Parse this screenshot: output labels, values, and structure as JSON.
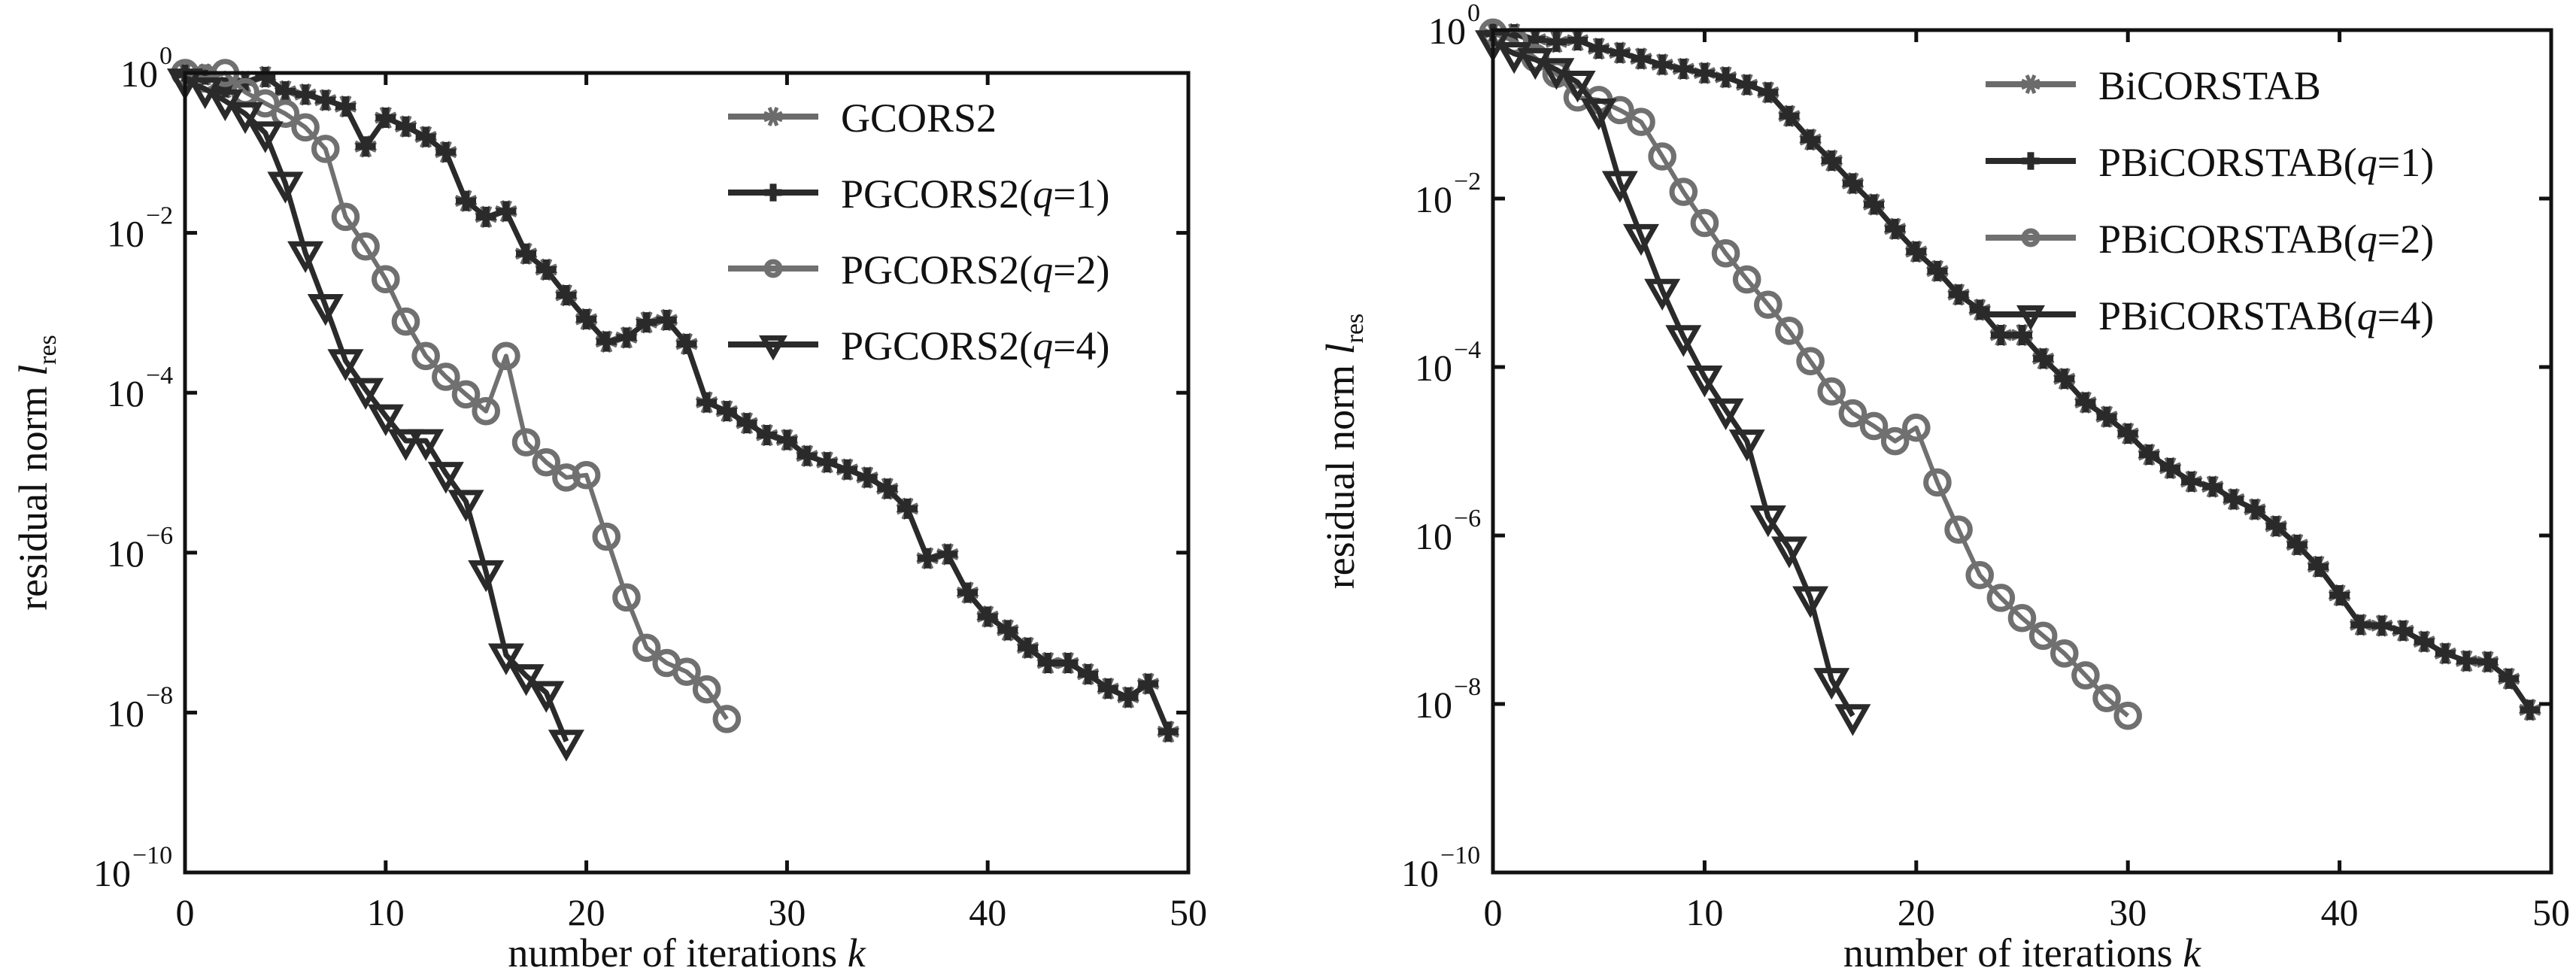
{
  "chart_data": [
    {
      "type": "line",
      "title": "",
      "xlabel": "number of iterations k",
      "ylabel": "residual norm l_res",
      "ylabel_main": "residual norm ",
      "ylabel_italic": "l",
      "ylabel_sub": "res",
      "xlabel_main": "number of iterations ",
      "xlabel_italic": "k",
      "xscale": "linear",
      "yscale": "log",
      "xlim": [
        0,
        50
      ],
      "ylim": [
        1e-10,
        1
      ],
      "xticks": [
        0,
        10,
        20,
        30,
        40,
        50
      ],
      "yticks_exponents": [
        0,
        -2,
        -4,
        -6,
        -8,
        -10
      ],
      "ytick_base": "10",
      "grid": false,
      "legend_position": "top-right",
      "series": [
        {
          "name": "GCORS2",
          "name_parts": {
            "pre": "GCORS2",
            "italic": "",
            "post": ""
          },
          "marker": "asterisk",
          "color": "#6b6b6b",
          "x": [
            0,
            1,
            2,
            3,
            4,
            5,
            6,
            7,
            8,
            9,
            10,
            11,
            12,
            13,
            14,
            15,
            16,
            17,
            18,
            19,
            20,
            21,
            22,
            23,
            24,
            25,
            26,
            27,
            28,
            29,
            30,
            31,
            32,
            33,
            34,
            35,
            36,
            37,
            38,
            39,
            40,
            41,
            42,
            43,
            44,
            45,
            46,
            47,
            48,
            49
          ],
          "log10_y": [
            -0.02,
            -0.02,
            -0.18,
            -0.11,
            -0.05,
            -0.23,
            -0.27,
            -0.34,
            -0.42,
            -0.92,
            -0.56,
            -0.67,
            -0.8,
            -0.99,
            -1.6,
            -1.8,
            -1.73,
            -2.26,
            -2.46,
            -2.78,
            -3.08,
            -3.36,
            -3.31,
            -3.12,
            -3.09,
            -3.39,
            -4.12,
            -4.23,
            -4.38,
            -4.53,
            -4.59,
            -4.79,
            -4.87,
            -4.96,
            -5.06,
            -5.2,
            -5.45,
            -6.07,
            -6.02,
            -6.5,
            -6.8,
            -6.97,
            -7.19,
            -7.38,
            -7.38,
            -7.52,
            -7.7,
            -7.81,
            -7.64,
            -8.24
          ]
        },
        {
          "name": "PGCORS2(q=1)",
          "name_parts": {
            "pre": "PGCORS2(",
            "italic": "q",
            "post": "=1)"
          },
          "marker": "plus",
          "color": "#2a2a2a",
          "x": [
            0,
            1,
            2,
            3,
            4,
            5,
            6,
            7,
            8,
            9,
            10,
            11,
            12,
            13,
            14,
            15,
            16,
            17,
            18,
            19,
            20,
            21,
            22,
            23,
            24,
            25,
            26,
            27,
            28,
            29,
            30,
            31,
            32,
            33,
            34,
            35,
            36,
            37,
            38,
            39,
            40,
            41,
            42,
            43,
            44,
            45,
            46,
            47,
            48,
            49
          ],
          "log10_y": [
            -0.02,
            -0.02,
            -0.18,
            -0.11,
            -0.05,
            -0.23,
            -0.27,
            -0.34,
            -0.42,
            -0.92,
            -0.56,
            -0.67,
            -0.8,
            -0.99,
            -1.6,
            -1.8,
            -1.73,
            -2.26,
            -2.46,
            -2.78,
            -3.08,
            -3.36,
            -3.31,
            -3.12,
            -3.09,
            -3.39,
            -4.12,
            -4.23,
            -4.38,
            -4.53,
            -4.59,
            -4.79,
            -4.87,
            -4.96,
            -5.06,
            -5.2,
            -5.45,
            -6.07,
            -6.02,
            -6.5,
            -6.8,
            -6.97,
            -7.19,
            -7.38,
            -7.38,
            -7.52,
            -7.7,
            -7.81,
            -7.64,
            -8.24
          ]
        },
        {
          "name": "PGCORS2(q=2)",
          "name_parts": {
            "pre": "PGCORS2(",
            "italic": "q",
            "post": "=2)"
          },
          "marker": "circle",
          "color": "#707070",
          "x": [
            0,
            1,
            2,
            3,
            4,
            5,
            6,
            7,
            8,
            9,
            10,
            11,
            12,
            13,
            14,
            15,
            16,
            17,
            18,
            19,
            20,
            21,
            22,
            23,
            24,
            25,
            26,
            27
          ],
          "log10_y": [
            0.0,
            -0.07,
            0.0,
            -0.24,
            -0.38,
            -0.51,
            -0.68,
            -0.95,
            -1.8,
            -2.17,
            -2.58,
            -3.11,
            -3.54,
            -3.8,
            -4.02,
            -4.23,
            -3.54,
            -4.62,
            -4.87,
            -5.06,
            -5.03,
            -5.8,
            -6.56,
            -7.19,
            -7.38,
            -7.49,
            -7.71,
            -8.08
          ]
        },
        {
          "name": "PGCORS2(q=4)",
          "name_parts": {
            "pre": "PGCORS2(",
            "italic": "q",
            "post": "=4)"
          },
          "marker": "triangle-down",
          "color": "#2a2a2a",
          "x": [
            0,
            1,
            2,
            3,
            4,
            5,
            6,
            7,
            8,
            9,
            10,
            11,
            12,
            13,
            14,
            15,
            16,
            17,
            18,
            19
          ],
          "log10_y": [
            -0.09,
            -0.2,
            -0.35,
            -0.51,
            -0.75,
            -1.38,
            -2.25,
            -2.91,
            -3.6,
            -3.96,
            -4.29,
            -4.6,
            -4.6,
            -5.01,
            -5.36,
            -6.24,
            -7.28,
            -7.54,
            -7.75,
            -8.36
          ]
        }
      ]
    },
    {
      "type": "line",
      "title": "",
      "xlabel": "number of iterations k",
      "ylabel": "residual norm l_res",
      "ylabel_main": "residual norm ",
      "ylabel_italic": "l",
      "ylabel_sub": "res",
      "xlabel_main": "number of iterations ",
      "xlabel_italic": "k",
      "xscale": "linear",
      "yscale": "log",
      "xlim": [
        0,
        50
      ],
      "ylim": [
        1e-10,
        1
      ],
      "xticks": [
        0,
        10,
        20,
        30,
        40,
        50
      ],
      "yticks_exponents": [
        0,
        -2,
        -4,
        -6,
        -8,
        -10
      ],
      "ytick_base": "10",
      "grid": false,
      "legend_position": "top-right",
      "series": [
        {
          "name": "BiCORSTAB",
          "name_parts": {
            "pre": "BiCORSTAB",
            "italic": "",
            "post": ""
          },
          "marker": "asterisk",
          "color": "#6b6b6b",
          "x": [
            0,
            1,
            2,
            3,
            4,
            5,
            6,
            7,
            8,
            9,
            10,
            11,
            12,
            13,
            14,
            15,
            16,
            17,
            18,
            19,
            20,
            21,
            22,
            23,
            24,
            25,
            26,
            27,
            28,
            29,
            30,
            31,
            32,
            33,
            34,
            35,
            36,
            37,
            38,
            39,
            40,
            41,
            42,
            43,
            44,
            45,
            46,
            47,
            48,
            49
          ],
          "log10_y": [
            -0.04,
            -0.05,
            -0.11,
            -0.14,
            -0.12,
            -0.22,
            -0.27,
            -0.34,
            -0.41,
            -0.46,
            -0.51,
            -0.56,
            -0.65,
            -0.74,
            -1.02,
            -1.3,
            -1.55,
            -1.82,
            -2.07,
            -2.36,
            -2.63,
            -2.86,
            -3.14,
            -3.32,
            -3.62,
            -3.62,
            -3.9,
            -4.14,
            -4.42,
            -4.59,
            -4.79,
            -5.04,
            -5.2,
            -5.36,
            -5.42,
            -5.57,
            -5.69,
            -5.89,
            -6.11,
            -6.37,
            -6.71,
            -7.06,
            -7.07,
            -7.13,
            -7.26,
            -7.4,
            -7.49,
            -7.5,
            -7.7,
            -8.07
          ]
        },
        {
          "name": "PBiCORSTAB(q=1)",
          "name_parts": {
            "pre": "PBiCORSTAB(",
            "italic": "q",
            "post": "=1)"
          },
          "marker": "plus",
          "color": "#2a2a2a",
          "x": [
            0,
            1,
            2,
            3,
            4,
            5,
            6,
            7,
            8,
            9,
            10,
            11,
            12,
            13,
            14,
            15,
            16,
            17,
            18,
            19,
            20,
            21,
            22,
            23,
            24,
            25,
            26,
            27,
            28,
            29,
            30,
            31,
            32,
            33,
            34,
            35,
            36,
            37,
            38,
            39,
            40,
            41,
            42,
            43,
            44,
            45,
            46,
            47,
            48,
            49
          ],
          "log10_y": [
            -0.04,
            -0.05,
            -0.11,
            -0.14,
            -0.12,
            -0.22,
            -0.27,
            -0.34,
            -0.41,
            -0.46,
            -0.51,
            -0.56,
            -0.65,
            -0.74,
            -1.02,
            -1.3,
            -1.55,
            -1.82,
            -2.07,
            -2.36,
            -2.63,
            -2.86,
            -3.14,
            -3.32,
            -3.62,
            -3.62,
            -3.9,
            -4.14,
            -4.42,
            -4.59,
            -4.79,
            -5.04,
            -5.2,
            -5.36,
            -5.42,
            -5.57,
            -5.69,
            -5.89,
            -6.11,
            -6.37,
            -6.71,
            -7.06,
            -7.07,
            -7.13,
            -7.26,
            -7.4,
            -7.49,
            -7.5,
            -7.7,
            -8.07
          ]
        },
        {
          "name": "PBiCORSTAB(q=2)",
          "name_parts": {
            "pre": "PBiCORSTAB(",
            "italic": "q",
            "post": "=2)"
          },
          "marker": "circle",
          "color": "#707070",
          "x": [
            0,
            1,
            2,
            3,
            4,
            5,
            6,
            7,
            8,
            9,
            10,
            11,
            12,
            13,
            14,
            15,
            16,
            17,
            18,
            19,
            20,
            21,
            22,
            23,
            24,
            25,
            26,
            27,
            28,
            29,
            30
          ],
          "log10_y": [
            -0.03,
            -0.13,
            -0.33,
            -0.52,
            -0.8,
            -0.83,
            -0.95,
            -1.09,
            -1.5,
            -1.92,
            -2.29,
            -2.65,
            -2.96,
            -3.26,
            -3.57,
            -3.93,
            -4.29,
            -4.55,
            -4.7,
            -4.88,
            -4.72,
            -5.37,
            -5.93,
            -6.47,
            -6.74,
            -6.98,
            -7.19,
            -7.4,
            -7.66,
            -7.93,
            -8.14
          ]
        },
        {
          "name": "PBiCORSTAB(q=4)",
          "name_parts": {
            "pre": "PBiCORSTAB(",
            "italic": "q",
            "post": "=4)"
          },
          "marker": "triangle-down",
          "color": "#2a2a2a",
          "x": [
            0,
            1,
            2,
            3,
            4,
            5,
            6,
            7,
            8,
            9,
            10,
            11,
            12,
            13,
            14,
            15,
            16,
            17
          ],
          "log10_y": [
            -0.14,
            -0.28,
            -0.35,
            -0.47,
            -0.62,
            -0.95,
            -1.81,
            -2.44,
            -3.09,
            -3.64,
            -4.12,
            -4.51,
            -4.88,
            -5.78,
            -6.15,
            -6.74,
            -7.71,
            -8.14
          ]
        }
      ]
    }
  ]
}
